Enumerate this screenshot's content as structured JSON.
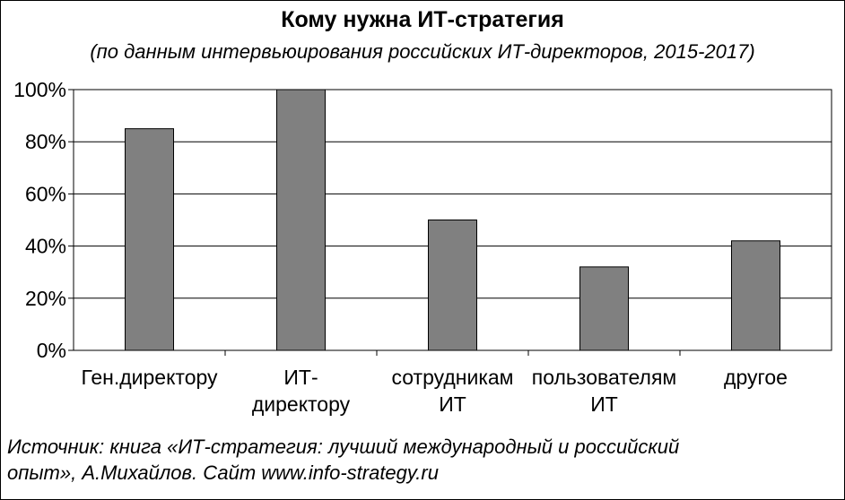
{
  "header": {
    "title": "Кому нужна ИТ-стратегия",
    "subtitle": "(по данным интервьюирования российских ИТ-директоров, 2015-2017)"
  },
  "footer": {
    "source_line1": "Источник: книга «ИТ-стратегия: лучший международный и российский",
    "source_line2": "опыт», А.Михайлов.  Сайт www.info-strategy.ru"
  },
  "chart_data": {
    "type": "bar",
    "title": "Кому нужна ИТ-стратегия",
    "subtitle": "(по данным интервьюирования российских ИТ-директоров, 2015-2017)",
    "categories": [
      [
        "Ген.директору"
      ],
      [
        "ИТ-",
        "директору"
      ],
      [
        "сотрудникам",
        "ИТ"
      ],
      [
        "пользователям",
        "ИТ"
      ],
      [
        "другое"
      ]
    ],
    "values": [
      85,
      100,
      50,
      32,
      42
    ],
    "ylim": [
      0,
      100
    ],
    "yticks": [
      "0%",
      "20%",
      "40%",
      "60%",
      "80%",
      "100%"
    ],
    "ytick_values": [
      0,
      20,
      40,
      60,
      80,
      100
    ],
    "grid": true,
    "bar_color": "#808080"
  }
}
